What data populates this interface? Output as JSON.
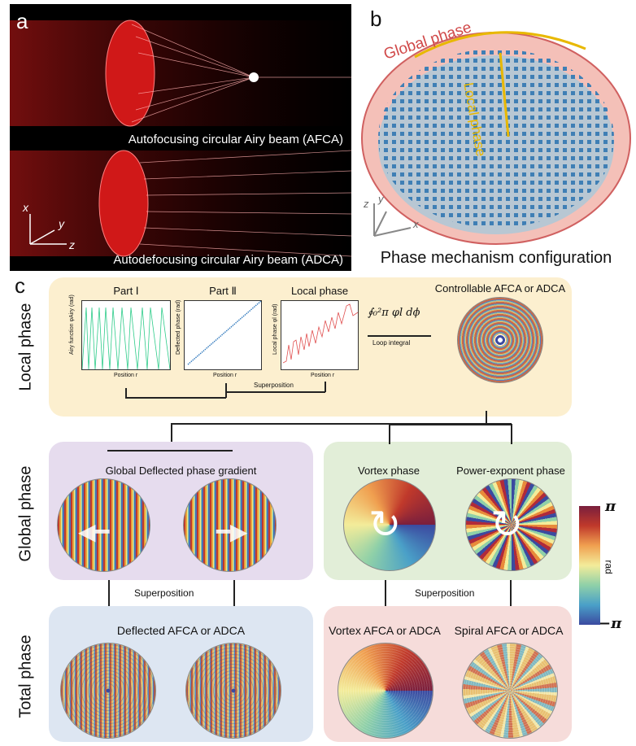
{
  "panel_a": {
    "letter": "a",
    "afca_caption": "Autofocusing circular Airy beam (AFCA)",
    "adca_caption": "Autodefocusing circular Airy beam (ADCA)",
    "axes": {
      "x": "x",
      "y": "y",
      "z": "z"
    }
  },
  "panel_b": {
    "letter": "b",
    "global_phase": "Global phase",
    "local_phase": "Local phase",
    "caption": "Phase mechanism configuration",
    "axes": {
      "x": "x",
      "y": "y",
      "z": "z"
    }
  },
  "panel_c": {
    "letter": "c",
    "rows": {
      "local": "Local phase",
      "global": "Global phase",
      "total": "Total phase"
    },
    "local": {
      "part1": {
        "title": "Part Ⅰ",
        "ylabel": "Airy function φAiry (rad)",
        "xlabel": "Position r"
      },
      "part2": {
        "title": "Part Ⅱ",
        "ylabel": "Deflected phase (rad)",
        "xlabel": "Position r"
      },
      "local_plot": {
        "title": "Local phase",
        "ylabel": "Local phase φl (rad)",
        "xlabel": "Position r"
      },
      "superposition": "Superposition",
      "integral": "∮₀²π φl dϕ",
      "loop_integral": "Loop integral",
      "result_title": "Controllable AFCA or ADCA"
    },
    "global_left": {
      "title": "Global Deflected phase gradient"
    },
    "global_right": {
      "vortex_title": "Vortex phase",
      "power_title": "Power-exponent phase"
    },
    "superposition_left": "Superposition",
    "superposition_right": "Superposition",
    "total_left": {
      "title": "Deflected AFCA or ADCA"
    },
    "total_right": {
      "vortex_title": "Vortex AFCA or ADCA",
      "spiral_title": "Spiral AFCA or ADCA"
    },
    "colorbar": {
      "max": "π",
      "label": "rad",
      "min": "−π",
      "colors": [
        "#7a1f3d",
        "#c0392b",
        "#f0a050",
        "#f3ec9a",
        "#8fd0a8",
        "#4aa0c8",
        "#3b4aa0"
      ]
    }
  },
  "colors": {
    "local_box": "#fcefcf",
    "global_left_box": "#e6dcee",
    "global_right_box": "#e2eed8",
    "total_left_box": "#dde6f2",
    "total_right_box": "#f6dcda"
  }
}
